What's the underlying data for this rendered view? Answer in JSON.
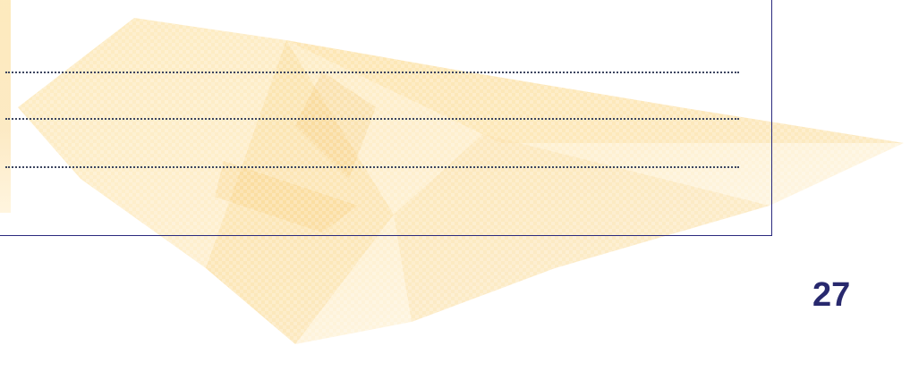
{
  "page": {
    "page_number": "27"
  },
  "answer_lines": {
    "count": 3,
    "style": "dotted"
  },
  "colors": {
    "frame_border": "#2b2a7e",
    "dotted_line": "#3c4560",
    "page_number": "#28296e",
    "watermark": "#f6c868"
  },
  "decoration": {
    "watermark": "faded-pyramid-watermark"
  }
}
